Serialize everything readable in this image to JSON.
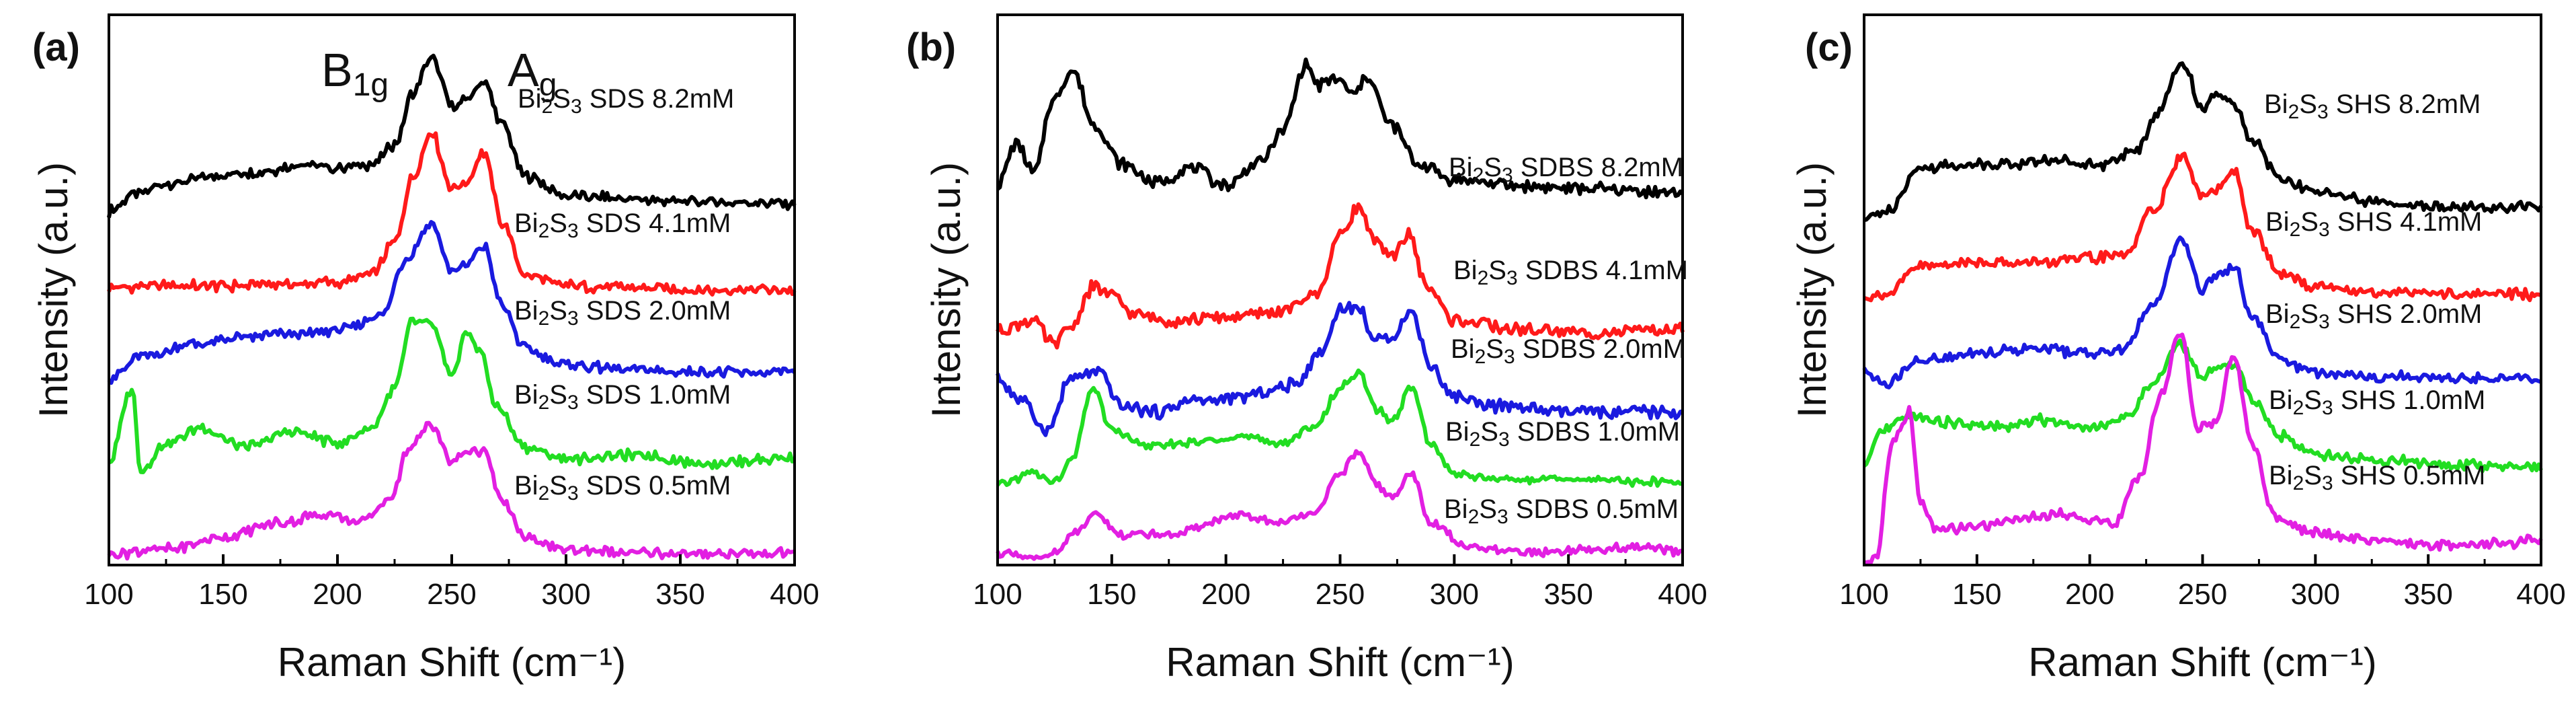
{
  "chart_data": [
    {
      "type": "line",
      "panel_label": "(a)",
      "xlabel": "Raman Shift  (cm⁻¹)",
      "ylabel": "Intensity (a.u.)",
      "xlim": [
        100,
        400
      ],
      "xticks": [
        "100",
        "150",
        "200",
        "250",
        "300",
        "350",
        "400"
      ],
      "annotations": [
        {
          "base": "B",
          "sub": "1g",
          "x": 218
        },
        {
          "base": "A",
          "sub": "g",
          "x": 275
        }
      ],
      "series": [
        {
          "name": "Bi2S3 SDS 8.2mM",
          "label_parts": [
            "Bi",
            "2",
            "S",
            "3",
            " SDS 8.2mM"
          ],
          "color": "#000000",
          "offset": 8.6,
          "x": [
            100,
            110,
            125,
            145,
            165,
            185,
            200,
            215,
            225,
            233,
            241,
            250,
            256,
            264,
            272,
            282,
            300,
            330,
            360,
            400
          ],
          "y": [
            0.4,
            0.8,
            1.1,
            1.3,
            1.4,
            1.6,
            1.5,
            1.6,
            2.1,
            3.4,
            4.3,
            3.1,
            3.2,
            3.7,
            2.6,
            1.3,
            0.8,
            0.7,
            0.65,
            0.6
          ]
        },
        {
          "name": "Bi2S3 SDS 4.1mM",
          "label_parts": [
            "Bi",
            "2",
            "S",
            "3",
            " SDS 4.1mM"
          ],
          "color": "#ff1a1a",
          "offset": 6.8,
          "x": [
            100,
            125,
            150,
            175,
            200,
            215,
            225,
            233,
            241,
            250,
            256,
            264,
            272,
            282,
            300,
            330,
            360,
            400
          ],
          "y": [
            0.25,
            0.3,
            0.3,
            0.35,
            0.4,
            0.6,
            1.4,
            3.1,
            4.2,
            2.8,
            2.9,
            3.7,
            1.9,
            0.6,
            0.3,
            0.25,
            0.2,
            0.2
          ]
        },
        {
          "name": "Bi2S3 SDS 2.0mM",
          "label_parts": [
            "Bi",
            "2",
            "S",
            "3",
            " SDS 2.0mM"
          ],
          "color": "#1a1adf",
          "offset": 4.6,
          "x": [
            100,
            115,
            135,
            160,
            185,
            205,
            220,
            230,
            241,
            250,
            256,
            264,
            272,
            282,
            300,
            330,
            360,
            400
          ],
          "y": [
            0.15,
            0.7,
            1.0,
            1.2,
            1.3,
            1.4,
            1.8,
            3.2,
            4.1,
            2.9,
            3.0,
            3.5,
            2.0,
            0.9,
            0.5,
            0.35,
            0.3,
            0.3
          ]
        },
        {
          "name": "Bi2S3 SDS 1.0mM",
          "label_parts": [
            "Bi",
            "2",
            "S",
            "3",
            " SDS 1.0mM"
          ],
          "color": "#22dd22",
          "offset": 2.2,
          "x": [
            100,
            110,
            114,
            125,
            140,
            160,
            180,
            200,
            215,
            225,
            233,
            241,
            250,
            256,
            262,
            270,
            282,
            300,
            330,
            360,
            400
          ],
          "y": [
            0.4,
            2.3,
            0.2,
            0.9,
            1.3,
            0.8,
            1.2,
            0.9,
            1.3,
            2.3,
            4.0,
            3.9,
            2.6,
            3.7,
            3.3,
            1.8,
            0.8,
            0.5,
            0.6,
            0.4,
            0.5
          ]
        },
        {
          "name": "Bi2S3 SDS 0.5mM",
          "label_parts": [
            "Bi",
            "2",
            "S",
            "3",
            " SDS 0.5mM"
          ],
          "color": "#e21fe2",
          "offset": 0.0,
          "x": [
            100,
            125,
            150,
            175,
            195,
            210,
            222,
            232,
            241,
            250,
            256,
            264,
            272,
            282,
            300,
            330,
            360,
            400
          ],
          "y": [
            0.3,
            0.4,
            0.7,
            1.1,
            1.3,
            1.1,
            1.6,
            3.0,
            3.6,
            2.6,
            2.9,
            2.9,
            1.6,
            0.7,
            0.4,
            0.3,
            0.3,
            0.3
          ]
        }
      ]
    },
    {
      "type": "line",
      "panel_label": "(b)",
      "xlabel": "Raman Shift  (cm⁻¹)",
      "ylabel": "Intensity (a.u.)",
      "xlim": [
        100,
        400
      ],
      "xticks": [
        "100",
        "150",
        "200",
        "250",
        "300",
        "350",
        "400"
      ],
      "annotations": [],
      "series": [
        {
          "name": "Bi2S3 SDBS 8.2mM",
          "label_parts": [
            "Bi",
            "2",
            "S",
            "3",
            " SDBS 8.2mM"
          ],
          "color": "#000000",
          "offset": 11.8,
          "x": [
            100,
            108,
            116,
            124,
            133,
            142,
            155,
            170,
            185,
            200,
            215,
            225,
            235,
            240,
            248,
            256,
            262,
            272,
            285,
            300,
            330,
            360,
            400
          ],
          "y": [
            0.6,
            2.0,
            1.0,
            3.4,
            4.4,
            2.6,
            1.3,
            0.7,
            1.2,
            0.6,
            1.4,
            2.4,
            4.6,
            3.9,
            4.1,
            3.6,
            4.2,
            2.6,
            1.3,
            0.8,
            0.6,
            0.5,
            0.4
          ]
        },
        {
          "name": "Bi2S3 SDBS 4.1mM",
          "label_parts": [
            "Bi",
            "2",
            "S",
            "3",
            " SDBS 4.1mM"
          ],
          "color": "#ff1a1a",
          "offset": 7.2,
          "x": [
            100,
            115,
            125,
            132,
            142,
            150,
            160,
            175,
            200,
            225,
            240,
            250,
            258,
            266,
            272,
            280,
            288,
            300,
            330,
            360,
            400
          ],
          "y": [
            0.5,
            0.8,
            0.0,
            0.6,
            1.9,
            1.6,
            1.0,
            0.8,
            0.9,
            1.1,
            1.7,
            3.6,
            4.5,
            3.3,
            2.9,
            3.6,
            1.9,
            0.8,
            0.5,
            0.4,
            0.5
          ]
        },
        {
          "name": "Bi2S3 SDBS 2.0mM",
          "label_parts": [
            "Bi",
            "2",
            "S",
            "3",
            " SDBS 2.0mM"
          ],
          "color": "#1a1adf",
          "offset": 4.4,
          "x": [
            100,
            110,
            122,
            132,
            144,
            155,
            170,
            185,
            200,
            215,
            230,
            242,
            250,
            258,
            266,
            273,
            281,
            290,
            300,
            320,
            350,
            400
          ],
          "y": [
            1.7,
            1.0,
            0.0,
            1.7,
            1.9,
            0.8,
            0.6,
            1.0,
            1.0,
            1.2,
            1.5,
            2.6,
            4.0,
            4.0,
            2.9,
            3.1,
            3.9,
            2.1,
            1.1,
            0.8,
            0.6,
            0.6
          ]
        },
        {
          "name": "Bi2S3 SDBS 1.0mM",
          "label_parts": [
            "Bi",
            "2",
            "S",
            "3",
            " SDBS 1.0mM"
          ],
          "color": "#22dd22",
          "offset": 2.4,
          "x": [
            100,
            115,
            125,
            132,
            142,
            150,
            165,
            185,
            205,
            225,
            240,
            250,
            258,
            266,
            273,
            281,
            290,
            300,
            320,
            350,
            400
          ],
          "y": [
            0.2,
            0.6,
            0.3,
            1.0,
            3.4,
            2.0,
            1.5,
            1.6,
            1.8,
            1.6,
            2.2,
            3.4,
            3.9,
            2.7,
            2.3,
            3.4,
            1.5,
            0.6,
            0.4,
            0.4,
            0.3
          ]
        },
        {
          "name": "Bi2S3 SDBS 0.5mM",
          "label_parts": [
            "Bi",
            "2",
            "S",
            "3",
            " SDBS 0.5mM"
          ],
          "color": "#e21fe2",
          "offset": 0.0,
          "x": [
            100,
            115,
            125,
            135,
            142,
            155,
            175,
            205,
            225,
            240,
            250,
            258,
            266,
            273,
            281,
            290,
            305,
            330,
            360,
            380,
            400
          ],
          "y": [
            0.4,
            0.2,
            0.4,
            1.1,
            1.6,
            1.0,
            1.0,
            1.6,
            1.4,
            1.8,
            3.0,
            3.7,
            2.6,
            2.2,
            3.0,
            1.4,
            0.6,
            0.4,
            0.5,
            0.6,
            0.4
          ]
        }
      ]
    },
    {
      "type": "line",
      "panel_label": "(c)",
      "xlabel": "Raman Shift  (cm⁻¹)",
      "ylabel": "Intensity (a.u.)",
      "xlim": [
        100,
        400
      ],
      "xticks": [
        "100",
        "150",
        "200",
        "250",
        "300",
        "350",
        "400"
      ],
      "annotations": [],
      "series": [
        {
          "name": "Bi2S3 SHS 8.2mM",
          "label_parts": [
            "Bi",
            "2",
            "S",
            "3",
            " SHS 8.2mM"
          ],
          "color": "#000000",
          "offset": 8.6,
          "x": [
            100,
            110,
            125,
            145,
            165,
            185,
            205,
            220,
            230,
            241,
            250,
            257,
            264,
            272,
            285,
            300,
            330,
            360,
            400
          ],
          "y": [
            0.2,
            0.4,
            1.5,
            1.6,
            1.6,
            1.7,
            1.6,
            1.9,
            2.9,
            4.2,
            3.0,
            3.4,
            3.1,
            2.2,
            1.2,
            0.9,
            0.6,
            0.5,
            0.5
          ]
        },
        {
          "name": "Bi2S3 SHS 4.1mM",
          "label_parts": [
            "Bi",
            "2",
            "S",
            "3",
            " SHS 4.1mM"
          ],
          "color": "#ff1a1a",
          "offset": 6.6,
          "x": [
            100,
            110,
            125,
            150,
            175,
            200,
            215,
            228,
            241,
            250,
            256,
            264,
            272,
            285,
            300,
            330,
            360,
            400
          ],
          "y": [
            0.2,
            0.3,
            1.0,
            1.1,
            1.1,
            1.2,
            1.3,
            2.4,
            3.8,
            2.8,
            2.9,
            3.4,
            1.9,
            0.8,
            0.5,
            0.35,
            0.3,
            0.3
          ]
        },
        {
          "name": "Bi2S3 SHS 2.0mM",
          "label_parts": [
            "Bi",
            "2",
            "S",
            "3",
            " SHS 2.0mM"
          ],
          "color": "#1a1adf",
          "offset": 4.4,
          "x": [
            100,
            110,
            125,
            150,
            175,
            200,
            215,
            228,
            241,
            250,
            256,
            264,
            272,
            285,
            300,
            330,
            360,
            400
          ],
          "y": [
            0.5,
            0.2,
            0.8,
            1.0,
            1.1,
            1.0,
            1.1,
            2.2,
            3.9,
            2.6,
            3.0,
            3.2,
            1.9,
            0.8,
            0.5,
            0.4,
            0.35,
            0.3
          ]
        },
        {
          "name": "Bi2S3 SHS 1.0mM",
          "label_parts": [
            "Bi",
            "2",
            "S",
            "3",
            " SHS 1.0mM"
          ],
          "color": "#22dd22",
          "offset": 2.2,
          "x": [
            100,
            108,
            120,
            140,
            160,
            180,
            200,
            215,
            228,
            240,
            250,
            256,
            264,
            272,
            285,
            300,
            330,
            360,
            400
          ],
          "y": [
            0.3,
            1.2,
            1.6,
            1.4,
            1.3,
            1.5,
            1.3,
            1.5,
            2.4,
            3.4,
            2.6,
            2.8,
            2.9,
            2.0,
            1.1,
            0.6,
            0.45,
            0.35,
            0.3
          ]
        },
        {
          "name": "Bi2S3 SHS 0.5mM",
          "label_parts": [
            "Bi",
            "2",
            "S",
            "3",
            " SHS 0.5mM"
          ],
          "color": "#e21fe2",
          "offset": 0.0,
          "x": [
            100,
            105,
            113,
            120,
            125,
            132,
            150,
            170,
            190,
            210,
            222,
            232,
            240,
            248,
            255,
            264,
            272,
            282,
            300,
            330,
            360,
            400
          ],
          "y": [
            0.0,
            0.2,
            3.2,
            3.9,
            1.6,
            0.9,
            1.0,
            1.2,
            1.3,
            1.0,
            2.2,
            4.4,
            5.9,
            3.5,
            3.6,
            5.3,
            3.1,
            1.2,
            0.8,
            0.6,
            0.5,
            0.6
          ]
        }
      ]
    }
  ]
}
